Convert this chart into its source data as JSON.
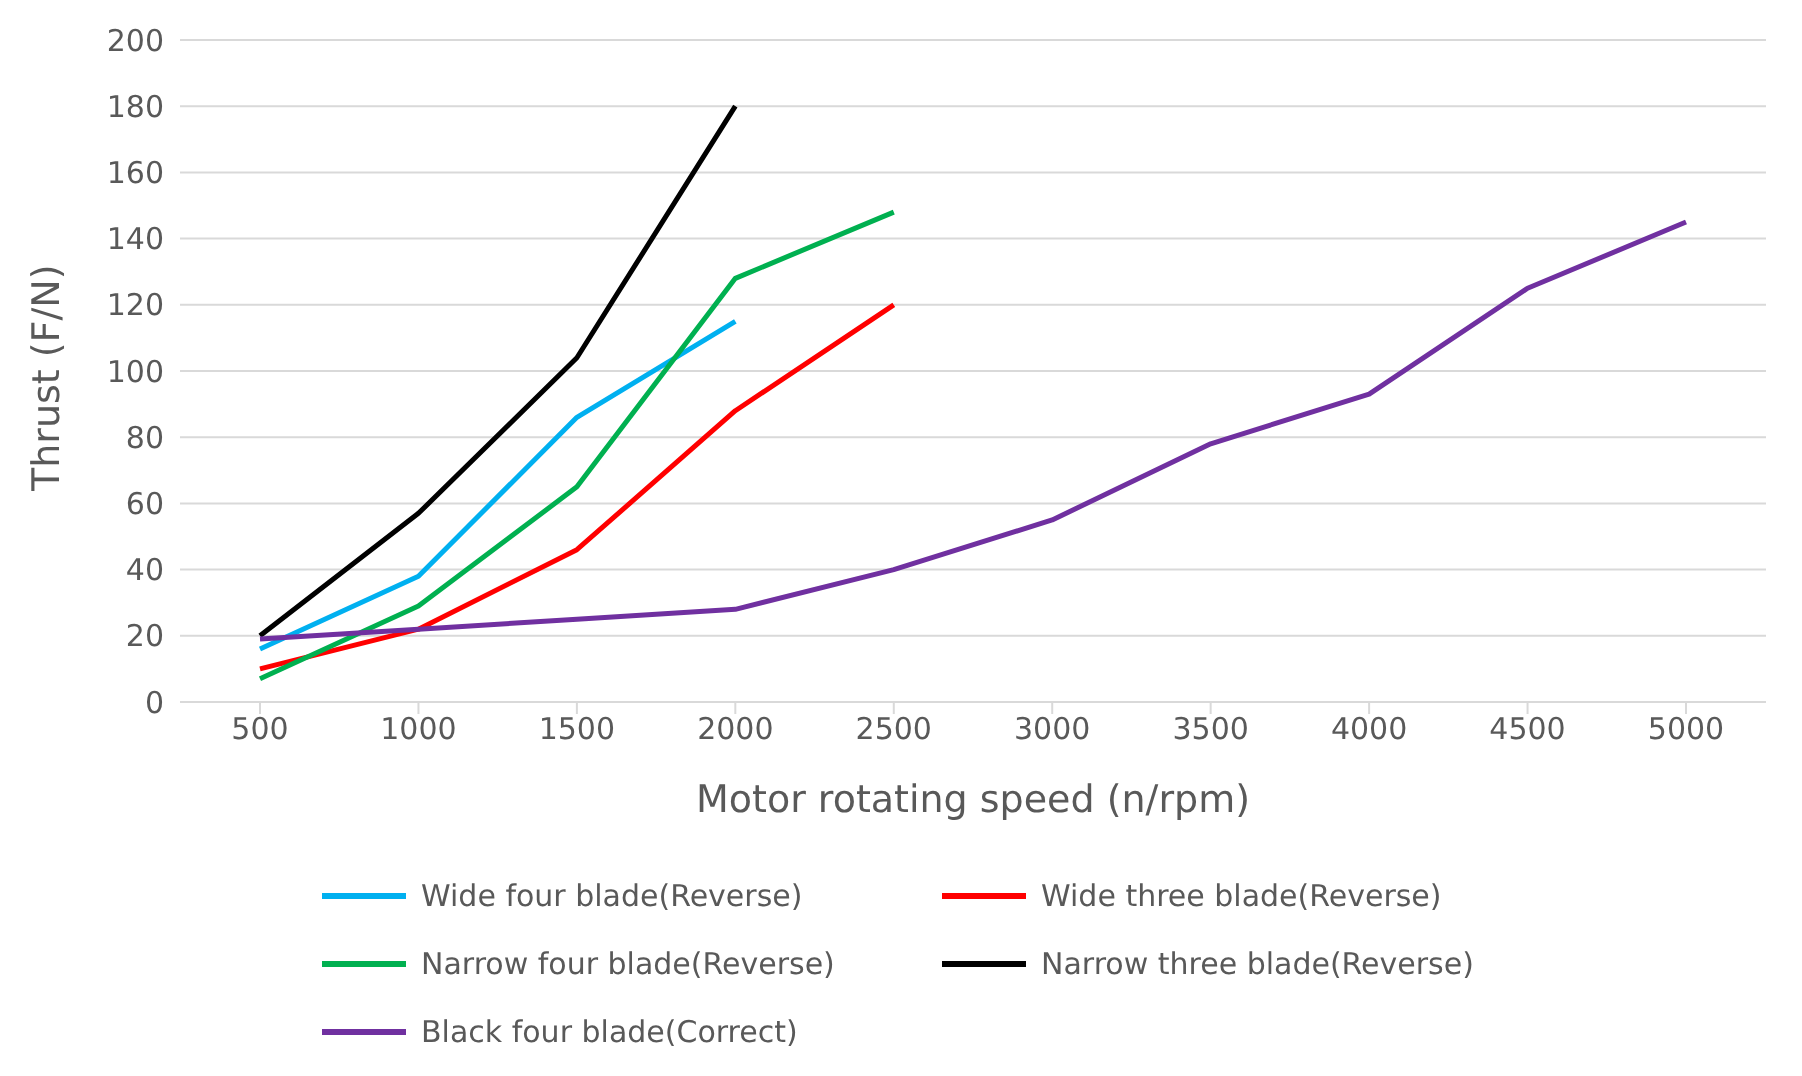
{
  "chart_data": {
    "type": "line",
    "xlabel": "Motor rotating speed (n/rpm)",
    "ylabel": "Thrust (F/N)",
    "categories": [
      "500",
      "1000",
      "1500",
      "2000",
      "2500",
      "3000",
      "3500",
      "4000",
      "4500",
      "5000"
    ],
    "series": [
      {
        "name": "Wide four blade(Reverse)",
        "color": "#00b0f0",
        "values": [
          16,
          38,
          86,
          115,
          null,
          null,
          null,
          null,
          null,
          null
        ]
      },
      {
        "name": "Wide three blade(Reverse)",
        "color": "#ff0000",
        "values": [
          10,
          22,
          46,
          88,
          120,
          null,
          null,
          null,
          null,
          null
        ]
      },
      {
        "name": "Narrow four blade(Reverse)",
        "color": "#00b050",
        "values": [
          7,
          29,
          65,
          128,
          148,
          null,
          null,
          null,
          null,
          null
        ]
      },
      {
        "name": "Narrow three blade(Reverse)",
        "color": "#000000",
        "values": [
          20,
          57,
          104,
          180,
          null,
          null,
          null,
          null,
          null,
          null
        ]
      },
      {
        "name": "Black four blade(Correct)",
        "color": "#7030a0",
        "values": [
          19,
          22,
          25,
          28,
          40,
          55,
          78,
          93,
          125,
          145
        ]
      }
    ],
    "ylim": [
      0,
      200
    ],
    "yticks": [
      0,
      20,
      40,
      60,
      80,
      100,
      120,
      140,
      160,
      180,
      200
    ],
    "grid": "y",
    "legend": "bottom",
    "marker": "none",
    "line_style": "solid"
  }
}
